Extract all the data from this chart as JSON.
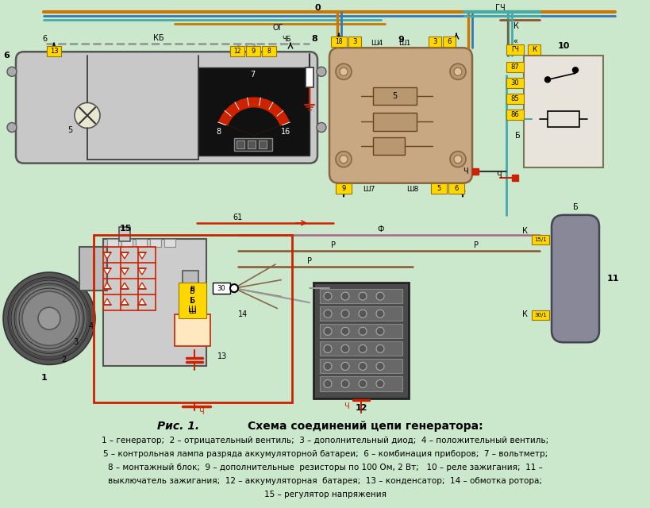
{
  "background_color": "#cce8cc",
  "caption_lines": [
    "1 – генератор;  2 – отрицательный вентиль;  3 – дополнительный диод;  4 – положительный вентиль;",
    "5 – контрольная лампа разряда аккумуляторной батареи;  6 – комбинация приборов;  7 – вольтметр;",
    "8 – монтажный блок;  9 – дополнительные  резисторы по 100 Ом, 2 Вт;   10 – реле зажигания;  11 –",
    "выключатель зажигания;  12 – аккумуляторная  батарея;  13 – конденсатор;  14 – обмотка ротора;",
    "15 – регулятор напряжения"
  ]
}
